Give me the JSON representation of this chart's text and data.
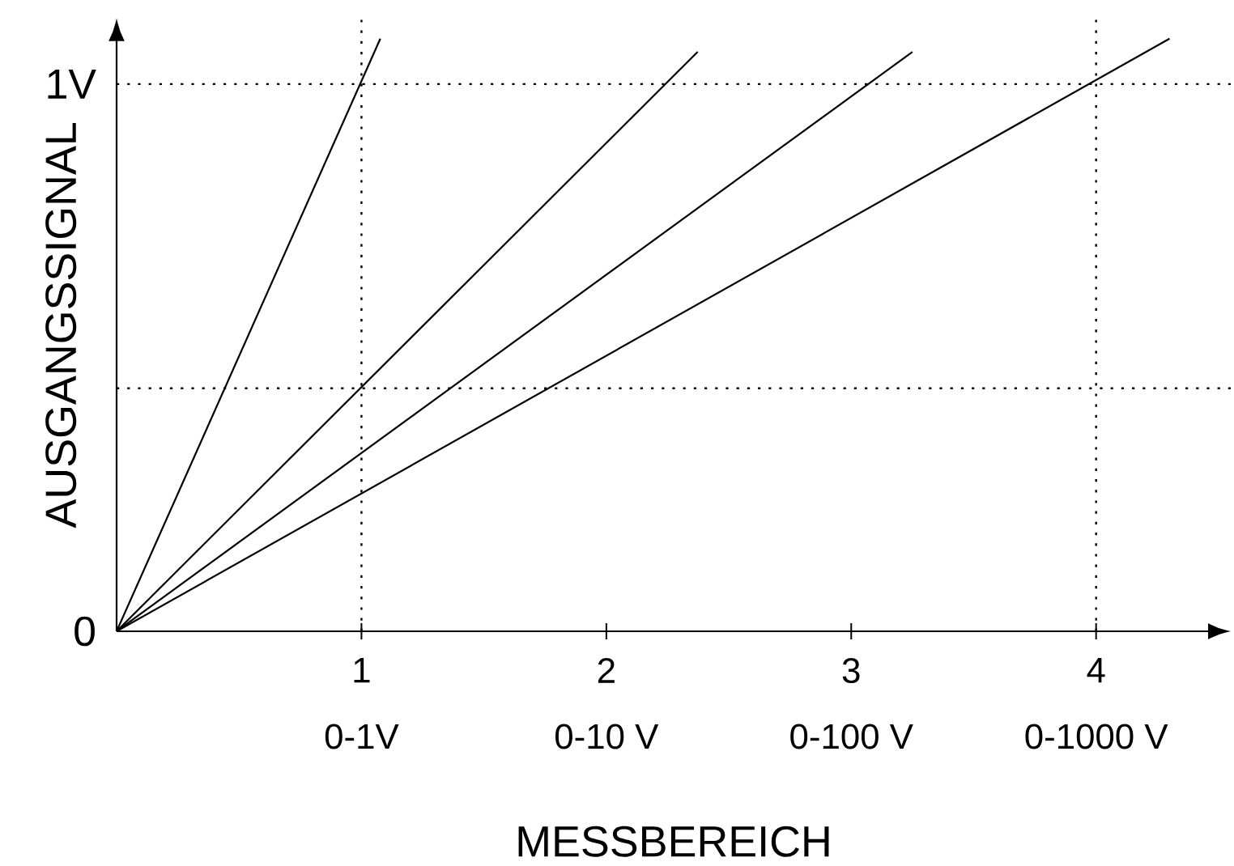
{
  "chart_data": {
    "type": "line",
    "xlabel": "MESSBEREICH",
    "ylabel": "AUSGANGSSIGNAL",
    "series": [
      {
        "color": "#000000",
        "x": [
          0,
          1.077
        ],
        "values": [
          0,
          1.083
        ]
      },
      {
        "color": "#000000",
        "x": [
          0,
          2.373
        ],
        "values": [
          0,
          1.059
        ]
      },
      {
        "color": "#000000",
        "x": [
          0,
          3.25
        ],
        "values": [
          0,
          1.059
        ]
      },
      {
        "color": "#000000",
        "x": [
          0,
          4.3
        ],
        "values": [
          0,
          1.083
        ]
      }
    ],
    "xlim": [
      0,
      4.55
    ],
    "ylim": [
      0,
      1.12
    ],
    "xticks": [
      1,
      2,
      3,
      4
    ],
    "yticks": [
      0,
      {
        "value": 1,
        "label": "1V"
      }
    ],
    "annotations": [
      "0-1V",
      "0-10 V",
      "0-100 V",
      "0-1000 V"
    ],
    "ref_lines": [
      {
        "axis": "y",
        "value": 1,
        "line_style": "dotted"
      },
      {
        "axis": "y",
        "value": 0.444,
        "line_style": "dotted"
      },
      {
        "axis": "x",
        "value": 1,
        "line_style": "dotted"
      },
      {
        "axis": "x",
        "value": 4,
        "line_style": "dotted"
      }
    ],
    "marker": "none",
    "line_style": "solid"
  }
}
